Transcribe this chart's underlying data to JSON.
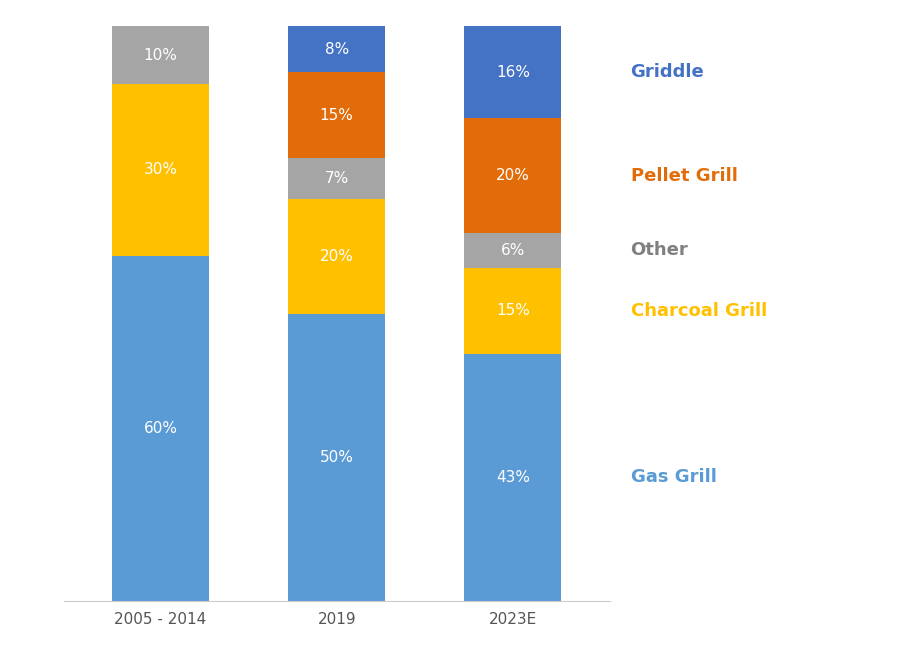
{
  "categories": [
    "2005 - 2014",
    "2019",
    "2023E"
  ],
  "series": [
    {
      "name": "Gas Grill",
      "values": [
        60,
        50,
        43
      ],
      "color": "#5B9BD5",
      "text_color": "white"
    },
    {
      "name": "Charcoal Grill",
      "values": [
        30,
        20,
        15
      ],
      "color": "#FFC000",
      "text_color": "white"
    },
    {
      "name": "Other",
      "values": [
        10,
        7,
        6
      ],
      "color": "#A5A5A5",
      "text_color": "white"
    },
    {
      "name": "Pellet Grill",
      "values": [
        0,
        15,
        20
      ],
      "color": "#E36C0A",
      "text_color": "white"
    },
    {
      "name": "Griddle",
      "values": [
        0,
        8,
        16
      ],
      "color": "#4472C4",
      "text_color": "white"
    }
  ],
  "legend_items": [
    {
      "name": "Griddle",
      "color": "#4472C4",
      "text_color": "#4472C4"
    },
    {
      "name": "Pellet Grill",
      "color": "#E36C0A",
      "text_color": "#E36C0A"
    },
    {
      "name": "Other",
      "color": "#A5A5A5",
      "text_color": "#808080"
    },
    {
      "name": "Charcoal Grill",
      "color": "#FFC000",
      "text_color": "#FFC000"
    },
    {
      "name": "Gas Grill",
      "color": "#5B9BD5",
      "text_color": "#5B9BD5"
    }
  ],
  "bar_width": 0.55,
  "background_color": "#FFFFFF",
  "label_fontsize": 11,
  "tick_fontsize": 11,
  "legend_fontsize": 13,
  "ylim": [
    0,
    100
  ]
}
